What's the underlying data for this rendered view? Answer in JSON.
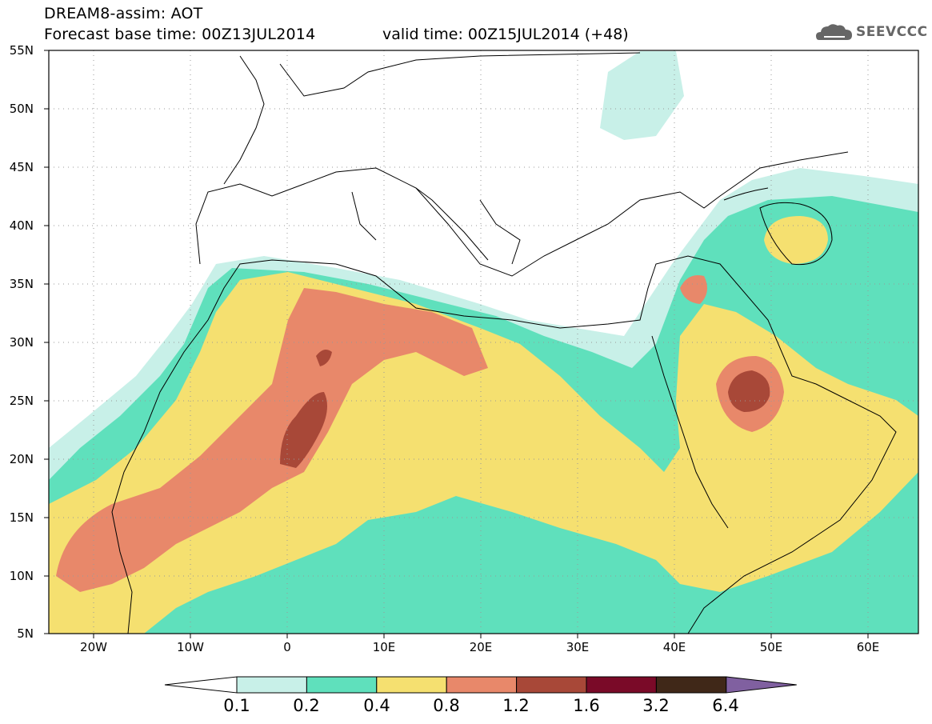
{
  "header": {
    "line1": "DREAM8-assim: AOT",
    "line2": "Forecast base time: 00Z13JUL2014",
    "valid": "valid time: 00Z15JUL2014 (+48)",
    "logo_text": "SEEVCCC"
  },
  "map": {
    "lon_range": [
      -25,
      65
    ],
    "lat_range": [
      5,
      55
    ],
    "lat_labels": [
      "55N",
      "50N",
      "45N",
      "40N",
      "35N",
      "30N",
      "25N",
      "20N",
      "15N",
      "10N",
      "5N"
    ],
    "lon_labels": [
      "20W",
      "10W",
      "0",
      "10E",
      "20E",
      "30E",
      "40E",
      "50E",
      "60E"
    ],
    "grid": "dotted"
  },
  "colorbar": {
    "labels": [
      "0.1",
      "0.2",
      "0.4",
      "0.8",
      "1.2",
      "1.6",
      "3.2",
      "6.4"
    ],
    "colors": [
      "#ffffff",
      "#c8f0e8",
      "#5fe0bc",
      "#f5e070",
      "#e8886a",
      "#a84838",
      "#7a0a28",
      "#402818",
      "#8060a0"
    ]
  }
}
